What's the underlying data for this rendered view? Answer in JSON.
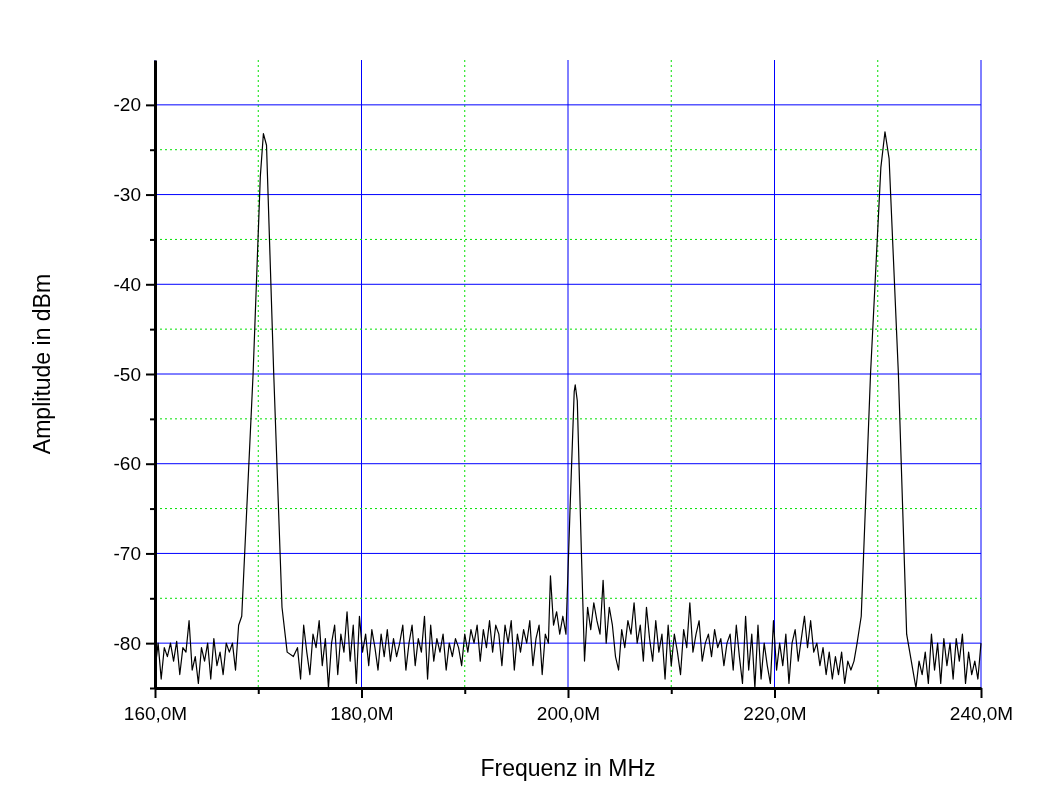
{
  "chart_data": {
    "type": "line",
    "xlabel": "Frequenz in MHz",
    "ylabel": "Amplitude in dBm",
    "xlim": [
      160,
      240
    ],
    "ylim": [
      -85,
      -15
    ],
    "xticks": [
      {
        "value": 160,
        "label": "160,0M"
      },
      {
        "value": 170,
        "label": null
      },
      {
        "value": 180,
        "label": "180,0M"
      },
      {
        "value": 190,
        "label": null
      },
      {
        "value": 200,
        "label": "200,0M"
      },
      {
        "value": 210,
        "label": null
      },
      {
        "value": 220,
        "label": "220,0M"
      },
      {
        "value": 230,
        "label": null
      },
      {
        "value": 240,
        "label": "240,0M"
      }
    ],
    "yticks": [
      {
        "value": -85,
        "label": null
      },
      -80,
      {
        "value": -75,
        "label": null
      },
      -70,
      {
        "value": -65,
        "label": null
      },
      -60,
      {
        "value": -55,
        "label": null
      },
      -50,
      {
        "value": -45,
        "label": null
      },
      -40,
      {
        "value": -35,
        "label": null
      },
      -30,
      {
        "value": -25,
        "label": null
      },
      -20
    ],
    "grid": true,
    "marker": "none",
    "line_style": "solid",
    "series": [
      {
        "color": "#000000",
        "x": [
          160.0,
          160.3,
          160.6,
          160.9,
          161.2,
          161.5,
          161.8,
          162.1,
          162.4,
          162.7,
          163.0,
          163.3,
          163.6,
          163.9,
          164.2,
          164.5,
          164.8,
          165.1,
          165.4,
          165.7,
          166.0,
          166.3,
          166.6,
          166.9,
          167.2,
          167.5,
          167.8,
          168.1,
          168.4,
          169.5,
          170.2,
          170.5,
          170.8,
          171.5,
          172.3,
          172.8,
          173.4,
          173.8,
          174.1,
          174.4,
          174.7,
          175.0,
          175.3,
          175.6,
          175.9,
          176.2,
          176.5,
          176.8,
          177.1,
          177.4,
          177.7,
          178.0,
          178.3,
          178.6,
          178.9,
          179.2,
          179.5,
          179.8,
          180.1,
          180.4,
          180.7,
          181.0,
          181.3,
          181.6,
          181.9,
          182.2,
          182.5,
          182.8,
          183.1,
          183.4,
          183.7,
          184.0,
          184.3,
          184.6,
          184.9,
          185.2,
          185.5,
          185.8,
          186.1,
          186.4,
          186.7,
          187.0,
          187.3,
          187.6,
          187.9,
          188.2,
          188.5,
          188.8,
          189.1,
          189.4,
          189.7,
          190.0,
          190.3,
          190.6,
          190.9,
          191.2,
          191.5,
          191.8,
          192.1,
          192.4,
          192.7,
          193.0,
          193.3,
          193.6,
          193.9,
          194.2,
          194.5,
          194.8,
          195.1,
          195.4,
          195.7,
          196.0,
          196.3,
          196.6,
          196.9,
          197.2,
          197.5,
          197.8,
          198.1,
          198.3,
          198.6,
          198.9,
          199.2,
          199.5,
          199.8,
          200.2,
          200.6,
          200.7,
          200.9,
          201.3,
          201.6,
          201.9,
          202.2,
          202.5,
          202.8,
          203.1,
          203.4,
          203.7,
          204.0,
          204.3,
          204.6,
          204.9,
          205.2,
          205.5,
          205.8,
          206.1,
          206.4,
          206.7,
          207.0,
          207.3,
          207.6,
          207.9,
          208.2,
          208.5,
          208.8,
          209.1,
          209.4,
          209.7,
          210.0,
          210.3,
          210.6,
          210.9,
          211.2,
          211.5,
          211.8,
          212.1,
          212.4,
          212.7,
          213.0,
          213.3,
          213.6,
          213.9,
          214.2,
          214.5,
          214.8,
          215.1,
          215.4,
          215.7,
          216.0,
          216.3,
          216.6,
          216.9,
          217.2,
          217.5,
          217.8,
          218.1,
          218.4,
          218.7,
          219.0,
          219.3,
          219.6,
          219.9,
          220.2,
          220.5,
          220.8,
          221.1,
          221.4,
          221.7,
          222.0,
          222.3,
          222.6,
          222.9,
          223.2,
          223.5,
          223.8,
          224.1,
          224.4,
          224.7,
          225.0,
          225.3,
          225.6,
          225.9,
          226.2,
          226.5,
          226.8,
          227.1,
          227.4,
          227.7,
          228.0,
          228.4,
          229.3,
          230.3,
          230.7,
          231.1,
          232.0,
          232.8,
          233.1,
          233.4,
          233.7,
          234.0,
          234.3,
          234.6,
          234.9,
          235.2,
          235.5,
          235.8,
          236.1,
          236.4,
          236.7,
          237.0,
          237.3,
          237.6,
          237.9,
          238.2,
          238.5,
          238.8,
          239.1,
          239.4,
          239.7,
          240.0
        ],
        "values": [
          -83,
          -80,
          -84,
          -80.5,
          -81.5,
          -80,
          -82,
          -79.8,
          -83.5,
          -80.5,
          -81,
          -77.5,
          -83,
          -81.5,
          -84.5,
          -80.5,
          -82,
          -80,
          -84,
          -79.5,
          -82.5,
          -81,
          -83.5,
          -80,
          -81,
          -80,
          -83,
          -78,
          -77,
          -50,
          -28,
          -23.2,
          -24.5,
          -50,
          -76,
          -81,
          -81.5,
          -80.5,
          -84,
          -78,
          -81,
          -83.5,
          -79,
          -80.5,
          -77.5,
          -82.5,
          -79.5,
          -85,
          -80,
          -78,
          -83.5,
          -79,
          -81,
          -76.5,
          -82,
          -78,
          -84.5,
          -77,
          -81,
          -79,
          -82.5,
          -78.5,
          -80.5,
          -83,
          -79,
          -81.5,
          -78.5,
          -82,
          -79.5,
          -81.5,
          -80,
          -78,
          -83,
          -80,
          -78,
          -82.5,
          -79.5,
          -81,
          -77,
          -84,
          -78,
          -82,
          -79.5,
          -81,
          -79,
          -83,
          -80,
          -81.5,
          -79.5,
          -80.5,
          -82.5,
          -79,
          -81,
          -78.5,
          -80,
          -78,
          -82,
          -78.5,
          -80.5,
          -77.5,
          -81,
          -78,
          -79,
          -82.5,
          -78,
          -80,
          -77.5,
          -83,
          -79,
          -81,
          -78.5,
          -80,
          -77.5,
          -82.5,
          -79.5,
          -78,
          -83.5,
          -79,
          -80,
          -72.5,
          -78,
          -76.5,
          -79,
          -77,
          -79,
          -65,
          -52,
          -51.2,
          -53,
          -70,
          -82,
          -76,
          -78.5,
          -75.5,
          -77.5,
          -79,
          -73,
          -80,
          -76,
          -78,
          -81.5,
          -83,
          -78.5,
          -80.5,
          -77.5,
          -79,
          -75.5,
          -80,
          -78,
          -82,
          -76,
          -79.5,
          -82,
          -77.5,
          -81,
          -79,
          -84,
          -78,
          -82.5,
          -79,
          -81,
          -83.5,
          -78.5,
          -80.5,
          -75.5,
          -81,
          -79,
          -77.5,
          -82,
          -80,
          -79,
          -81.5,
          -78.5,
          -80.5,
          -79.5,
          -82.5,
          -80,
          -79,
          -83,
          -78,
          -81.5,
          -84.5,
          -77,
          -83,
          -79,
          -85,
          -78,
          -84,
          -80,
          -82.5,
          -84.5,
          -77.5,
          -83,
          -80,
          -82.5,
          -79,
          -84.5,
          -80,
          -78.5,
          -82,
          -79.5,
          -77,
          -80.5,
          -77.5,
          -81,
          -80,
          -82.5,
          -80.5,
          -83.5,
          -81,
          -84,
          -81.5,
          -83.5,
          -81,
          -84.5,
          -82,
          -83,
          -82,
          -80,
          -77,
          -50,
          -27,
          -23,
          -26,
          -50,
          -79,
          -81,
          -83,
          -85,
          -82,
          -83.5,
          -81,
          -84.5,
          -79,
          -83,
          -80,
          -84.5,
          -79.5,
          -82.5,
          -80,
          -84,
          -79.5,
          -82,
          -79,
          -84.5,
          -81,
          -83.5,
          -82,
          -84,
          -80
        ]
      }
    ]
  }
}
